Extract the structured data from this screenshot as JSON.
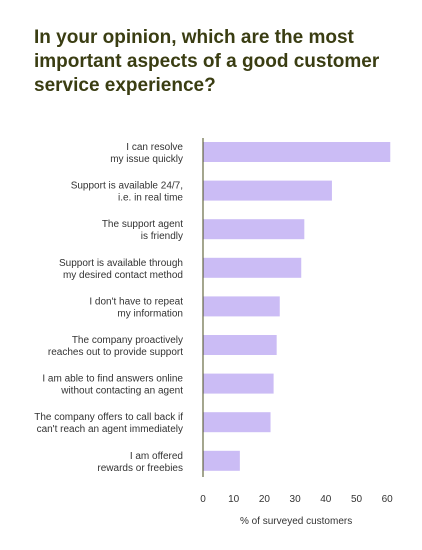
{
  "title": {
    "part1": "In your opinion, which are the most important aspects of a ",
    "emphasis": "good",
    "part2": " customer service experience?"
  },
  "chart_data": {
    "type": "bar",
    "orientation": "horizontal",
    "categories": [
      [
        "I can resolve",
        "my issue quickly"
      ],
      [
        "Support is available 24/7,",
        "i.e. in real time"
      ],
      [
        "The support agent",
        "is friendly"
      ],
      [
        "Support is available through",
        "my desired contact method"
      ],
      [
        "I don't have to repeat",
        "my information"
      ],
      [
        "The company proactively",
        "reaches out to provide support"
      ],
      [
        "I am able to find answers online",
        "without contacting an agent"
      ],
      [
        "The company offers to call back if",
        "can't reach an agent immediately"
      ],
      [
        "I am offered",
        "rewards or freebies"
      ]
    ],
    "values": [
      61,
      42,
      33,
      32,
      25,
      24,
      23,
      22,
      12
    ],
    "xlabel": "% of surveyed customers",
    "xlim": [
      0,
      65
    ],
    "xticks": [
      0,
      10,
      20,
      30,
      40,
      50,
      60
    ],
    "grid": false,
    "bar_color": "#cbbcf5",
    "axis_color": "#4a4d1e"
  }
}
